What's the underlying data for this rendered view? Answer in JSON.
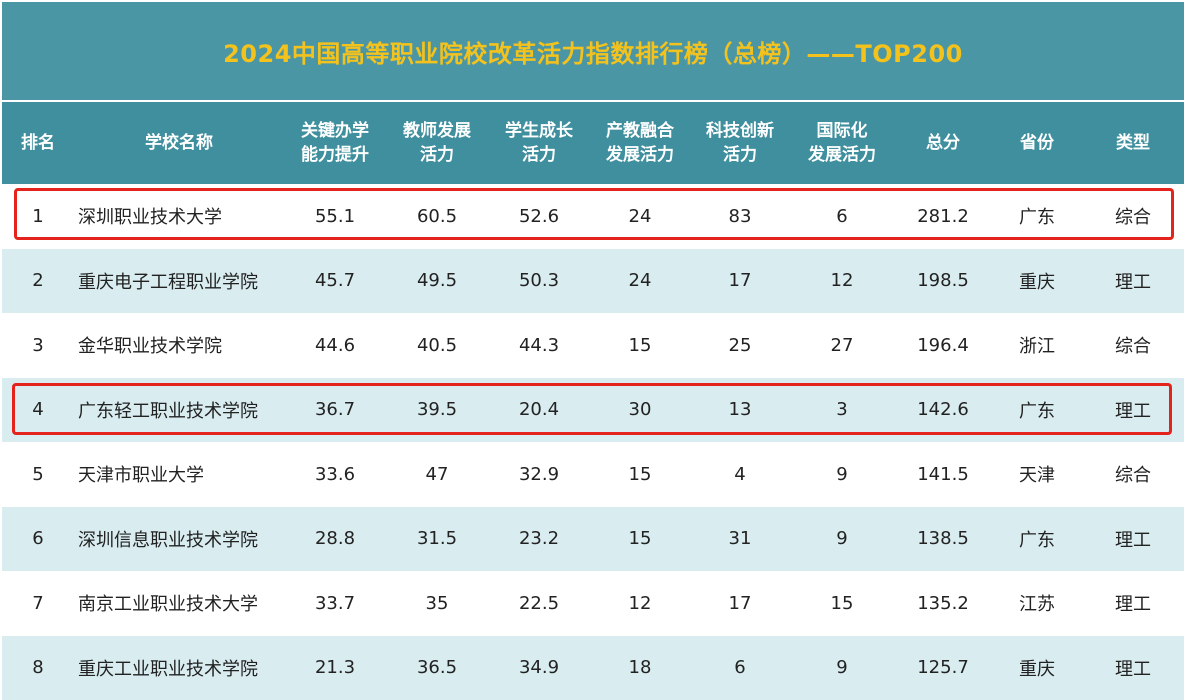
{
  "title": "2024中国高等职业院校改革活力指数排行榜（总榜）——TOP200",
  "headers": [
    "排名",
    "学校名称",
    "关键办学\n能力提升",
    "教师发展\n活力",
    "学生成长\n活力",
    "产教融合\n发展活力",
    "科技创新\n活力",
    "国际化\n发展活力",
    "总分",
    "省份",
    "类型"
  ],
  "rows": [
    {
      "rank": "1",
      "name": "深圳职业技术大学",
      "c1": "55.1",
      "c2": "60.5",
      "c3": "52.6",
      "c4": "24",
      "c5": "83",
      "c6": "6",
      "total": "281.2",
      "province": "广东",
      "type": "综合"
    },
    {
      "rank": "2",
      "name": "重庆电子工程职业学院",
      "c1": "45.7",
      "c2": "49.5",
      "c3": "50.3",
      "c4": "24",
      "c5": "17",
      "c6": "12",
      "total": "198.5",
      "province": "重庆",
      "type": "理工"
    },
    {
      "rank": "3",
      "name": "金华职业技术学院",
      "c1": "44.6",
      "c2": "40.5",
      "c3": "44.3",
      "c4": "15",
      "c5": "25",
      "c6": "27",
      "total": "196.4",
      "province": "浙江",
      "type": "综合"
    },
    {
      "rank": "4",
      "name": "广东轻工职业技术学院",
      "c1": "36.7",
      "c2": "39.5",
      "c3": "20.4",
      "c4": "30",
      "c5": "13",
      "c6": "3",
      "total": "142.6",
      "province": "广东",
      "type": "理工"
    },
    {
      "rank": "5",
      "name": "天津市职业大学",
      "c1": "33.6",
      "c2": "47",
      "c3": "32.9",
      "c4": "15",
      "c5": "4",
      "c6": "9",
      "total": "141.5",
      "province": "天津",
      "type": "综合"
    },
    {
      "rank": "6",
      "name": "深圳信息职业技术学院",
      "c1": "28.8",
      "c2": "31.5",
      "c3": "23.2",
      "c4": "15",
      "c5": "31",
      "c6": "9",
      "total": "138.5",
      "province": "广东",
      "type": "理工"
    },
    {
      "rank": "7",
      "name": "南京工业职业技术大学",
      "c1": "33.7",
      "c2": "35",
      "c3": "22.5",
      "c4": "12",
      "c5": "17",
      "c6": "15",
      "total": "135.2",
      "province": "江苏",
      "type": "理工"
    },
    {
      "rank": "8",
      "name": "重庆工业职业技术学院",
      "c1": "21.3",
      "c2": "36.5",
      "c3": "34.9",
      "c4": "18",
      "c5": "6",
      "c6": "9",
      "total": "125.7",
      "province": "重庆",
      "type": "理工"
    }
  ],
  "highlighted_ranks": [
    "1",
    "4"
  ],
  "colors": {
    "title_bg": "#4b96a4",
    "title_text": "#f3c21d",
    "header_bg": "#3f8f9e",
    "alt_row_bg": "#d9ecf0",
    "highlight_border": "#e3231c"
  }
}
